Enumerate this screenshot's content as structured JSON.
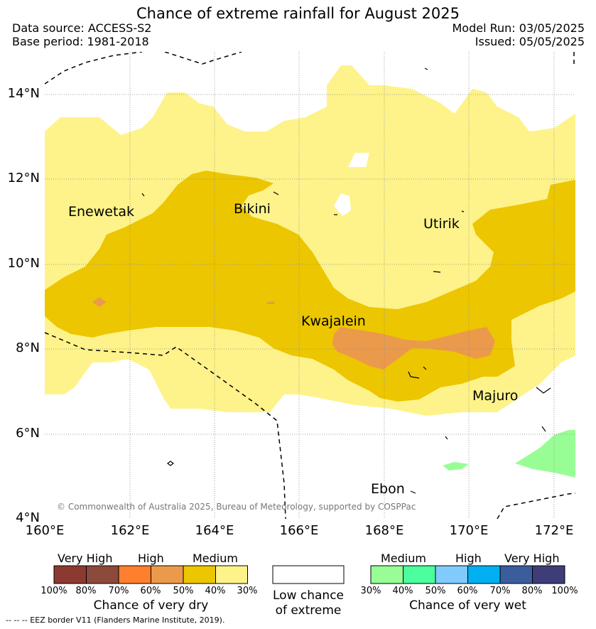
{
  "title": "Chance of extreme rainfall for August 2025",
  "header": {
    "data_source": "Data source: ACCESS-S2",
    "base_period": "Base period: 1981-2018",
    "model_run": "Model Run: 03/05/2025",
    "issued": "Issued: 05/05/2025"
  },
  "map": {
    "lat_ticks": [
      "14°N",
      "12°N",
      "10°N",
      "8°N",
      "6°N",
      "4°N"
    ],
    "lon_ticks": [
      "160°E",
      "162°E",
      "164°E",
      "166°E",
      "168°E",
      "170°E",
      "172°E"
    ],
    "places": [
      "Enewetak",
      "Bikini",
      "Utirik",
      "Kwajalein",
      "Majuro",
      "Ebon"
    ],
    "copyright": "© Commonwealth of Australia 2025, Bureau of Meteorology, supported by COSPPac"
  },
  "colors": {
    "dry_very_high_1": "#8b3a32",
    "dry_very_high_2": "#8b4a3a",
    "dry_high_1": "#fe7f2d",
    "dry_high_2": "#eb9a4b",
    "dry_medium_1": "#ecc600",
    "dry_medium_2": "#fdf38a",
    "wet_medium_1": "#99fd96",
    "wet_medium_2": "#4dfe9e",
    "wet_high_1": "#81cbfc",
    "wet_high_2": "#00b0f0",
    "wet_very_high_1": "#3b5d9d",
    "wet_very_high_2": "#3e3d78"
  },
  "legend": {
    "dry": {
      "categories": [
        "Very High",
        "High",
        "Medium"
      ],
      "percents": [
        "100%",
        "80%",
        "70%",
        "60%",
        "50%",
        "40%",
        "30%"
      ],
      "caption": "Chance of very dry"
    },
    "low": {
      "caption_line1": "Low chance",
      "caption_line2": "of extreme"
    },
    "wet": {
      "categories": [
        "Medium",
        "High",
        "Very High"
      ],
      "percents": [
        "30%",
        "40%",
        "50%",
        "60%",
        "70%",
        "80%",
        "100%"
      ],
      "caption": "Chance of very wet"
    }
  },
  "footnote": "-- -- -- EEZ border V11 (Flanders Marine Institute, 2019)."
}
